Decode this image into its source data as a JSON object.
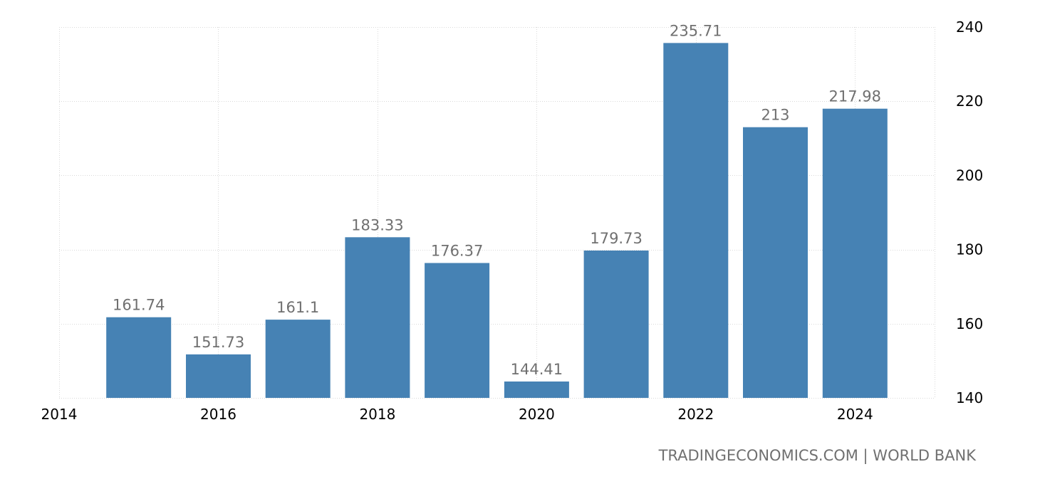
{
  "chart_data": {
    "type": "bar",
    "categories": [
      "2015",
      "2016",
      "2017",
      "2018",
      "2019",
      "2020",
      "2021",
      "2022",
      "2023",
      "2024"
    ],
    "x": [
      2015,
      2016,
      2017,
      2018,
      2019,
      2020,
      2021,
      2022,
      2023,
      2024
    ],
    "values": [
      161.74,
      151.73,
      161.1,
      183.33,
      176.37,
      144.41,
      179.73,
      235.71,
      213,
      217.98
    ],
    "value_labels": [
      "161.74",
      "151.73",
      "161.1",
      "183.33",
      "176.37",
      "144.41",
      "179.73",
      "235.71",
      "213",
      "217.98"
    ],
    "x_ticks": [
      "2014",
      "2016",
      "2018",
      "2020",
      "2022",
      "2024"
    ],
    "x_tick_values": [
      2014,
      2016,
      2018,
      2020,
      2022,
      2024
    ],
    "y_ticks": [
      "140",
      "160",
      "180",
      "200",
      "220",
      "240"
    ],
    "y_tick_values": [
      140,
      160,
      180,
      200,
      220,
      240
    ],
    "ylim": [
      140,
      240
    ],
    "xlim": [
      2014,
      2025
    ],
    "y_axis_position": "right",
    "grid": true,
    "bar_color": "#4682b4",
    "label_color": "#707070"
  },
  "source": "TRADINGECONOMICS.COM | WORLD BANK"
}
